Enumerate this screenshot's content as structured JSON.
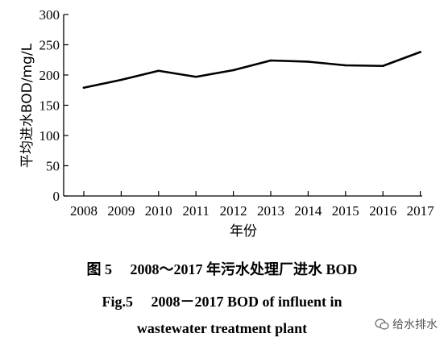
{
  "chart_data": {
    "type": "line",
    "categories": [
      "2008",
      "2009",
      "2010",
      "2011",
      "2012",
      "2013",
      "2014",
      "2015",
      "2016",
      "2017"
    ],
    "series": [
      {
        "values": [
          179,
          192,
          207,
          197,
          208,
          224,
          222,
          216,
          215,
          238
        ]
      }
    ],
    "xlabel": "年份",
    "ylabel": "平均进水BOD/mg/L",
    "ylim": [
      0,
      300
    ],
    "yticks": [
      0,
      50,
      100,
      150,
      200,
      250,
      300
    ],
    "grid": false,
    "line_color": "#000000"
  },
  "caption": {
    "cn": "图 5  2008～2017 年污水处理厂进水 BOD",
    "en_line1": "Fig.5  2008－2017 BOD of influent in",
    "en_line2": "wastewater treatment plant"
  },
  "watermark": {
    "text": "给水排水",
    "icon": "wechat-icon"
  }
}
